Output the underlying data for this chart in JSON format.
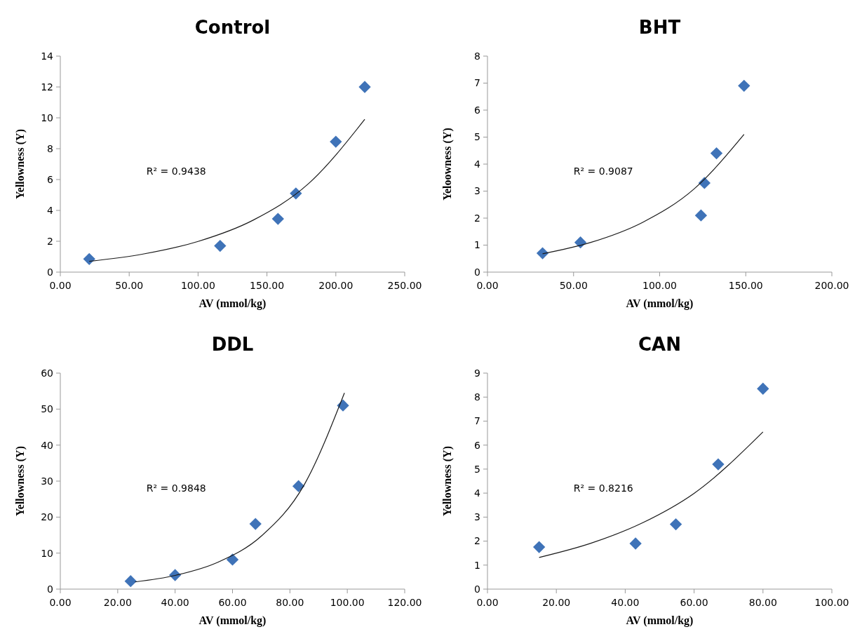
{
  "chart_data": [
    {
      "type": "scatter",
      "title": "Control",
      "xlabel": "AV (mmol/kg)",
      "ylabel": "Yellowness (Y)",
      "xlim": [
        0,
        250
      ],
      "xticks": [
        {
          "value": 0,
          "label": "0.00"
        },
        {
          "value": 50,
          "label": "50.00"
        },
        {
          "value": 100,
          "label": "100.00"
        },
        {
          "value": 150,
          "label": "150.00"
        },
        {
          "value": 200,
          "label": "200.00"
        },
        {
          "value": 250,
          "label": "250.00"
        }
      ],
      "ylim": [
        0,
        14
      ],
      "yticks": [
        0,
        2,
        4,
        6,
        8,
        10,
        12,
        14
      ],
      "annotations": [
        "R² = 0.9438"
      ],
      "series": [
        {
          "marker": "diamond",
          "color": "#3f73b8",
          "x": [
            21,
            116,
            158,
            171,
            200,
            221
          ],
          "values": [
            0.85,
            1.7,
            3.45,
            5.1,
            8.45,
            12.0
          ]
        },
        {
          "type": "line",
          "marker": "none",
          "color": "#1a1a1a",
          "x": [
            21,
            60,
            100,
            140,
            180,
            221
          ],
          "values": [
            0.7,
            1.17,
            1.99,
            3.37,
            5.72,
            9.9
          ]
        }
      ]
    },
    {
      "type": "scatter",
      "title": "BHT",
      "xlabel": "AV (mmol/kg)",
      "ylabel": "Yeloowness (Y)",
      "xlim": [
        0,
        200
      ],
      "xticks": [
        {
          "value": 0,
          "label": "0.00"
        },
        {
          "value": 50,
          "label": "50.00"
        },
        {
          "value": 100,
          "label": "100.00"
        },
        {
          "value": 150,
          "label": "150.00"
        },
        {
          "value": 200,
          "label": "200.00"
        }
      ],
      "ylim": [
        0,
        8
      ],
      "yticks": [
        0,
        1,
        2,
        3,
        4,
        5,
        6,
        7,
        8
      ],
      "annotations": [
        "R² = 0.9087"
      ],
      "series": [
        {
          "marker": "diamond",
          "color": "#3f73b8",
          "x": [
            32,
            54,
            124,
            126,
            133,
            149
          ],
          "values": [
            0.7,
            1.1,
            2.1,
            3.3,
            4.4,
            6.9
          ]
        },
        {
          "type": "line",
          "marker": "none",
          "color": "#1a1a1a",
          "x": [
            32,
            60,
            90,
            120,
            149
          ],
          "values": [
            0.68,
            1.1,
            1.84,
            3.08,
            5.1
          ]
        }
      ]
    },
    {
      "type": "scatter",
      "title": "DDL",
      "xlabel": "AV (mmol/kg)",
      "ylabel": "Yellowness (Y)",
      "xlim": [
        0,
        120
      ],
      "xticks": [
        {
          "value": 0,
          "label": "0.00"
        },
        {
          "value": 20,
          "label": "20.00"
        },
        {
          "value": 40,
          "label": "40.00"
        },
        {
          "value": 60,
          "label": "60.00"
        },
        {
          "value": 80,
          "label": "80.00"
        },
        {
          "value": 100,
          "label": "100.00"
        },
        {
          "value": 120,
          "label": "120.00"
        }
      ],
      "ylim": [
        0,
        60
      ],
      "yticks": [
        0,
        10,
        20,
        30,
        40,
        50,
        60
      ],
      "annotations": [
        "R² = 0.9848"
      ],
      "series": [
        {
          "marker": "diamond",
          "color": "#3f73b8",
          "x": [
            24.5,
            40,
            60,
            68,
            83,
            98.5
          ],
          "values": [
            2.2,
            3.9,
            8.2,
            18.1,
            28.6,
            51
          ]
        },
        {
          "type": "line",
          "marker": "none",
          "color": "#1a1a1a",
          "x": [
            26,
            40,
            55,
            70,
            85,
            99
          ],
          "values": [
            2.0,
            3.8,
            7.5,
            14.7,
            29.0,
            54.5
          ]
        }
      ]
    },
    {
      "type": "scatter",
      "title": "CAN",
      "xlabel": "AV (mmol/kg)",
      "ylabel": "Yellowness (Y)",
      "xlim": [
        0,
        100
      ],
      "xticks": [
        {
          "value": 0,
          "label": "0.00"
        },
        {
          "value": 20,
          "label": "20.00"
        },
        {
          "value": 40,
          "label": "40.00"
        },
        {
          "value": 60,
          "label": "60.00"
        },
        {
          "value": 80,
          "label": "80.00"
        },
        {
          "value": 100,
          "label": "100.00"
        }
      ],
      "ylim": [
        0,
        9
      ],
      "yticks": [
        0,
        1,
        2,
        3,
        4,
        5,
        6,
        7,
        8,
        9
      ],
      "annotations": [
        "R² = 0.8216"
      ],
      "series": [
        {
          "marker": "diamond",
          "color": "#3f73b8",
          "x": [
            15,
            43,
            54.7,
            67,
            80
          ],
          "values": [
            1.75,
            1.9,
            2.7,
            5.2,
            8.35
          ]
        },
        {
          "type": "line",
          "marker": "none",
          "color": "#1a1a1a",
          "x": [
            15,
            30,
            45,
            60,
            80
          ],
          "values": [
            1.32,
            1.91,
            2.76,
            3.99,
            6.55
          ]
        }
      ]
    }
  ]
}
